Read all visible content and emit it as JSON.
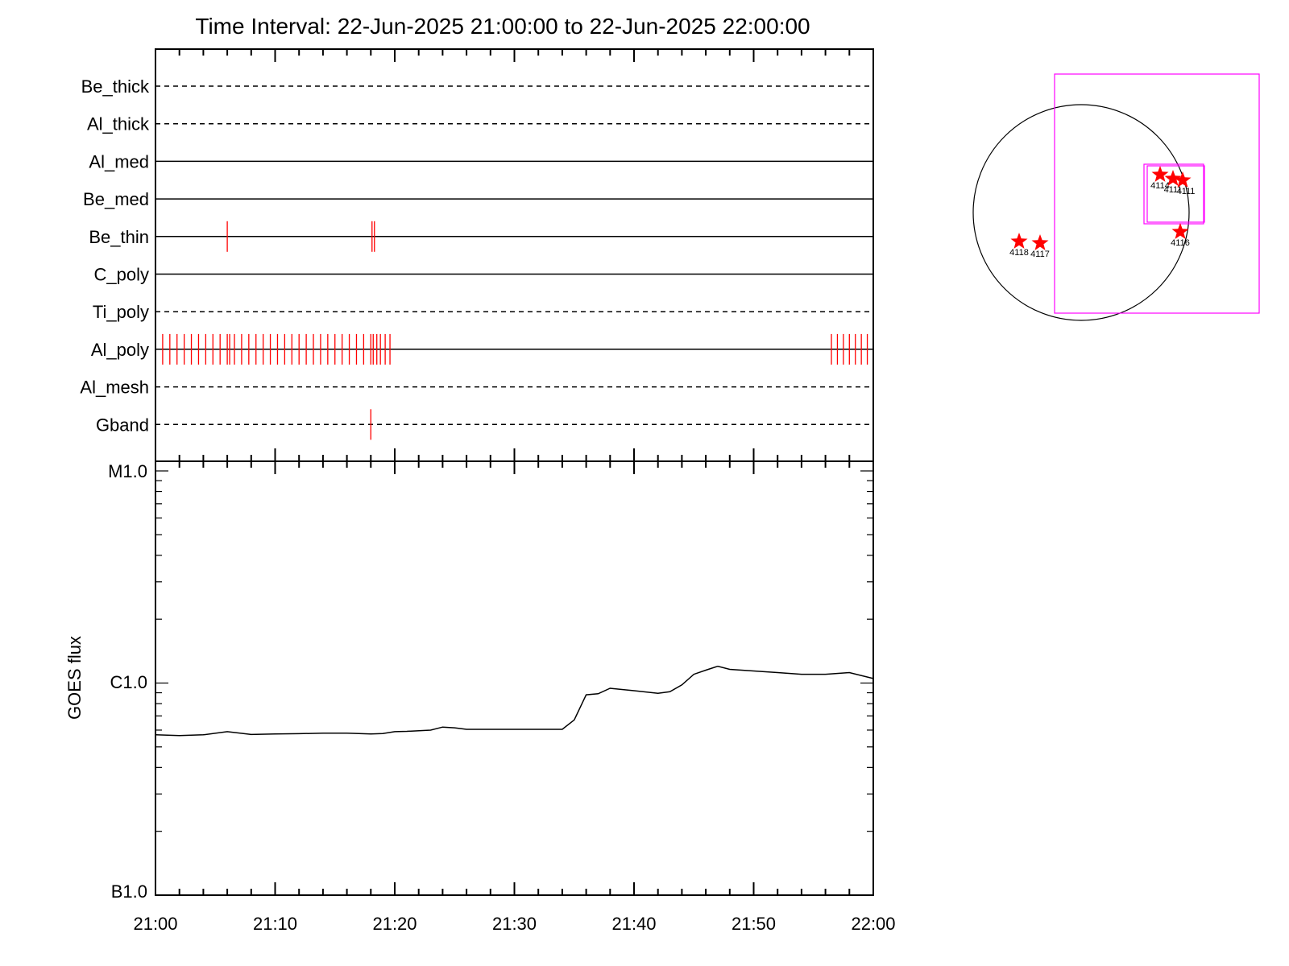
{
  "chart_data": [
    {
      "type": "timeline",
      "title": "Time Interval: 22-Jun-2025 21:00:00 to 22-Jun-2025 22:00:00",
      "x_range": [
        "21:00",
        "22:00"
      ],
      "rows": [
        {
          "name": "Be_thick",
          "style": "dashed",
          "events": []
        },
        {
          "name": "Al_thick",
          "style": "dashed",
          "events": []
        },
        {
          "name": "Al_med",
          "style": "solid",
          "events": []
        },
        {
          "name": "Be_med",
          "style": "solid",
          "events": []
        },
        {
          "name": "Be_thin",
          "style": "solid",
          "events": [
            "21:06",
            "21:18.1",
            "21:18.3"
          ]
        },
        {
          "name": "C_poly",
          "style": "solid",
          "events": []
        },
        {
          "name": "Ti_poly",
          "style": "dashed",
          "events": []
        },
        {
          "name": "Al_poly",
          "style": "solid",
          "events": [
            "21:00",
            "21:00.6",
            "21:01.2",
            "21:01.8",
            "21:02.4",
            "21:03",
            "21:03.6",
            "21:04.2",
            "21:04.8",
            "21:05.4",
            "21:06",
            "21:06.2",
            "21:06.6",
            "21:07.2",
            "21:07.8",
            "21:08.4",
            "21:09",
            "21:09.6",
            "21:10.2",
            "21:10.8",
            "21:11.4",
            "21:12",
            "21:12.6",
            "21:13.2",
            "21:13.8",
            "21:14.4",
            "21:15",
            "21:15.6",
            "21:16.2",
            "21:16.8",
            "21:17.4",
            "21:18",
            "21:18.2",
            "21:18.5",
            "21:18.8",
            "21:19.2",
            "21:19.6",
            "21:56.5",
            "21:57",
            "21:57.5",
            "21:58",
            "21:58.5",
            "21:59",
            "21:59.5",
            "22:00"
          ]
        },
        {
          "name": "Al_mesh",
          "style": "dashed",
          "events": []
        },
        {
          "name": "Gband",
          "style": "dashed",
          "events": [
            "21:18"
          ]
        }
      ]
    },
    {
      "type": "line",
      "ylabel": "GOES flux",
      "y_scale": "log",
      "ylim": [
        1e-07,
        1e-05
      ],
      "yticks": [
        {
          "label": "B1.0",
          "value": 1e-07
        },
        {
          "label": "C1.0",
          "value": 1e-06
        },
        {
          "label": "M1.0",
          "value": 1e-05
        }
      ],
      "xlim": [
        "21:00",
        "22:00"
      ],
      "xticks": [
        "21:00",
        "21:10",
        "21:20",
        "21:30",
        "21:40",
        "21:50",
        "22:00"
      ],
      "series": [
        {
          "x": [
            "21:00",
            "21:02",
            "21:04",
            "21:06",
            "21:08",
            "21:10",
            "21:12",
            "21:14",
            "21:16",
            "21:18",
            "21:19",
            "21:20",
            "21:21",
            "21:23",
            "21:24",
            "21:25",
            "21:26",
            "21:28",
            "21:30",
            "21:32",
            "21:34",
            "21:35",
            "21:36",
            "21:37",
            "21:38",
            "21:40",
            "21:42",
            "21:43",
            "21:44",
            "21:45",
            "21:46",
            "21:47",
            "21:48",
            "21:50",
            "21:52",
            "21:54",
            "21:56",
            "21:58",
            "22:00"
          ],
          "y": [
            5.7e-07,
            5.65e-07,
            5.7e-07,
            5.9e-07,
            5.72e-07,
            5.75e-07,
            5.77e-07,
            5.8e-07,
            5.8e-07,
            5.75e-07,
            5.78e-07,
            5.9e-07,
            5.92e-07,
            6e-07,
            6.2e-07,
            6.15e-07,
            6.05e-07,
            6.05e-07,
            6.05e-07,
            6.05e-07,
            6.05e-07,
            6.7e-07,
            8.8e-07,
            8.9e-07,
            9.45e-07,
            9.2e-07,
            8.95e-07,
            9.1e-07,
            9.8e-07,
            1.1e-06,
            1.15e-06,
            1.2e-06,
            1.16e-06,
            1.14e-06,
            1.12e-06,
            1.1e-06,
            1.1e-06,
            1.12e-06,
            1.05e-06
          ]
        }
      ]
    },
    {
      "type": "scatter",
      "subtype": "solar-disk-map",
      "points": [
        {
          "label": "4114"
        },
        {
          "label": "4111"
        },
        {
          "label": "4111"
        },
        {
          "label": "4116"
        },
        {
          "label": "4118"
        },
        {
          "label": "4117"
        }
      ],
      "colors": {
        "marker": "#ff0000",
        "box": "#ff00ff",
        "disk": "#000000"
      }
    }
  ]
}
